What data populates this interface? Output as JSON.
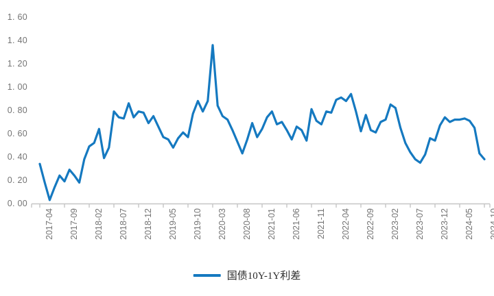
{
  "chart_data": {
    "type": "line",
    "legend": "国债10Y-1Y利差",
    "legend_position": "bottom-center",
    "grid": false,
    "line_color": "#1579c0",
    "axis_color": "#c6c6c6",
    "label_color": "#737373",
    "ylim": [
      0,
      1.6
    ],
    "yticks": [
      0,
      0.2,
      0.4,
      0.6,
      0.8,
      1.0,
      1.2,
      1.4,
      1.6
    ],
    "ytick_labels": [
      "0. 00",
      "0. 20",
      "0. 40",
      "0. 60",
      "0. 80",
      "1. 00",
      "1. 20",
      "1. 40",
      "1. 60"
    ],
    "x_tick_every": 5,
    "x_tick_labels": [
      "2017-04",
      "2017-09",
      "2018-02",
      "2018-07",
      "2018-12",
      "2019-05",
      "2019-10",
      "2020-03",
      "2020-08",
      "2021-01",
      "2021-06",
      "2021-11",
      "2022-04",
      "2022-09",
      "2023-02",
      "2023-07",
      "2023-12",
      "2024-05",
      "2024-10"
    ],
    "x": [
      "2017-04",
      "2017-05",
      "2017-06",
      "2017-07",
      "2017-08",
      "2017-09",
      "2017-10",
      "2017-11",
      "2017-12",
      "2018-01",
      "2018-02",
      "2018-03",
      "2018-04",
      "2018-05",
      "2018-06",
      "2018-07",
      "2018-08",
      "2018-09",
      "2018-10",
      "2018-11",
      "2018-12",
      "2019-01",
      "2019-02",
      "2019-03",
      "2019-04",
      "2019-05",
      "2019-06",
      "2019-07",
      "2019-08",
      "2019-09",
      "2019-10",
      "2019-11",
      "2019-12",
      "2020-01",
      "2020-02",
      "2020-03",
      "2020-04",
      "2020-05",
      "2020-06",
      "2020-07",
      "2020-08",
      "2020-09",
      "2020-10",
      "2020-11",
      "2020-12",
      "2021-01",
      "2021-02",
      "2021-03",
      "2021-04",
      "2021-05",
      "2021-06",
      "2021-07",
      "2021-08",
      "2021-09",
      "2021-10",
      "2021-11",
      "2021-12",
      "2022-01",
      "2022-02",
      "2022-03",
      "2022-04",
      "2022-05",
      "2022-06",
      "2022-07",
      "2022-08",
      "2022-09",
      "2022-10",
      "2022-11",
      "2022-12",
      "2023-01",
      "2023-02",
      "2023-03",
      "2023-04",
      "2023-05",
      "2023-06",
      "2023-07",
      "2023-08",
      "2023-09",
      "2023-10",
      "2023-11",
      "2023-12",
      "2024-01",
      "2024-02",
      "2024-03",
      "2024-04",
      "2024-05",
      "2024-06",
      "2024-07",
      "2024-08",
      "2024-09",
      "2024-10"
    ],
    "values": [
      0.34,
      0.18,
      0.03,
      0.14,
      0.24,
      0.19,
      0.29,
      0.24,
      0.18,
      0.38,
      0.49,
      0.52,
      0.64,
      0.39,
      0.48,
      0.79,
      0.74,
      0.73,
      0.86,
      0.74,
      0.79,
      0.78,
      0.69,
      0.75,
      0.66,
      0.57,
      0.55,
      0.48,
      0.56,
      0.61,
      0.57,
      0.77,
      0.88,
      0.79,
      0.88,
      1.36,
      0.84,
      0.75,
      0.72,
      0.63,
      0.53,
      0.43,
      0.55,
      0.69,
      0.57,
      0.64,
      0.74,
      0.79,
      0.68,
      0.7,
      0.63,
      0.55,
      0.66,
      0.63,
      0.54,
      0.81,
      0.71,
      0.68,
      0.79,
      0.78,
      0.89,
      0.91,
      0.88,
      0.94,
      0.79,
      0.62,
      0.76,
      0.63,
      0.61,
      0.7,
      0.72,
      0.85,
      0.82,
      0.65,
      0.52,
      0.44,
      0.38,
      0.35,
      0.42,
      0.56,
      0.54,
      0.67,
      0.74,
      0.7,
      0.72,
      0.72,
      0.73,
      0.71,
      0.65,
      0.43,
      0.38
    ]
  }
}
